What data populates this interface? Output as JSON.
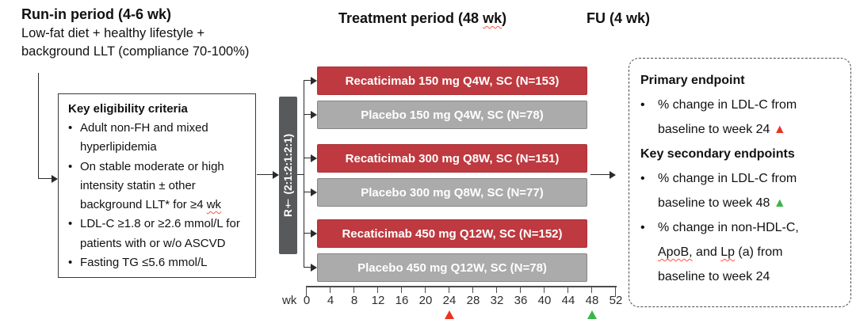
{
  "glyphs": {
    "bullet": "•",
    "triangle": "▲"
  },
  "colors": {
    "active_arm": "#BE3A40",
    "placebo_arm": "#ABABAB",
    "randomization_bar": "#58595B",
    "marker_red": "#EC3323",
    "marker_green": "#3BB44A"
  },
  "header": {
    "runin_title": "Run-in period (4-6 wk)",
    "runin_subtitle_line1": "Low-fat diet + healthy lifestyle +",
    "runin_subtitle_line2": "background LLT (compliance 70-100%)",
    "treatment_title_segments": [
      {
        "text": "Treatment period (48 "
      },
      {
        "text": "wk",
        "squiggle": true
      },
      {
        "text": ")"
      }
    ],
    "fu_title": "FU (4 wk)"
  },
  "eligibility": {
    "title": "Key eligibility criteria",
    "bullets": [
      {
        "segments": [
          {
            "text": "Adult non-FH and mixed hyperlipidemia"
          }
        ]
      },
      {
        "segments": [
          {
            "text": "On stable moderate or high intensity statin ± other background LLT* for ≥4 "
          },
          {
            "text": "wk",
            "squiggle": true
          }
        ]
      },
      {
        "segments": [
          {
            "text": "LDL-C ≥1.8 or ≥2.6 mmol/L for patients with or w/o ASCVD"
          }
        ]
      },
      {
        "segments": [
          {
            "text": "Fasting TG ≤5.6 mmol/L"
          }
        ]
      }
    ]
  },
  "randomization": {
    "label": "R† (2:1:2:1:2:1)"
  },
  "arms": [
    {
      "label": "Recaticimab 150 mg Q4W, SC (N=153)",
      "type": "active"
    },
    {
      "label": "Placebo 150 mg Q4W, SC (N=78)",
      "type": "placebo"
    },
    {
      "label": "Recaticimab 300 mg Q8W, SC (N=151)",
      "type": "active"
    },
    {
      "label": "Placebo 300 mg Q8W, SC (N=77)",
      "type": "placebo"
    },
    {
      "label": "Recaticimab 450 mg Q12W, SC (N=152)",
      "type": "active"
    },
    {
      "label": "Placebo 450 mg Q12W, SC (N=78)",
      "type": "placebo"
    }
  ],
  "timeline": {
    "unit_label": "wk",
    "ticks": [
      "0",
      "4",
      "8",
      "12",
      "16",
      "20",
      "24",
      "28",
      "32",
      "36",
      "40",
      "44",
      "48",
      "52"
    ],
    "markers": [
      {
        "week": 24,
        "color": "#EC3323"
      },
      {
        "week": 48,
        "color": "#3BB44A"
      }
    ]
  },
  "endpoints": {
    "blocks": [
      {
        "type": "heading",
        "text": "Primary endpoint"
      },
      {
        "type": "bullet",
        "lines": [
          [
            {
              "text": "% change in LDL-C from"
            }
          ],
          [
            {
              "text": "baseline to week 24 "
            },
            {
              "text": "▲",
              "color": "#EC3323"
            }
          ]
        ]
      },
      {
        "type": "heading",
        "text": "Key secondary endpoints"
      },
      {
        "type": "bullet",
        "lines": [
          [
            {
              "text": "% change in LDL-C from"
            }
          ],
          [
            {
              "text": "baseline to week 48 "
            },
            {
              "text": "▲",
              "color": "#3BB44A"
            }
          ]
        ]
      },
      {
        "type": "bullet",
        "lines": [
          [
            {
              "text": "% change in non-HDL-C,"
            }
          ],
          [
            {
              "text": "ApoB,",
              "squiggle": true
            },
            {
              "text": " and "
            },
            {
              "text": "Lp",
              "squiggle": true
            },
            {
              "text": " (a) from"
            }
          ],
          [
            {
              "text": "baseline to week 24"
            }
          ]
        ]
      }
    ]
  }
}
